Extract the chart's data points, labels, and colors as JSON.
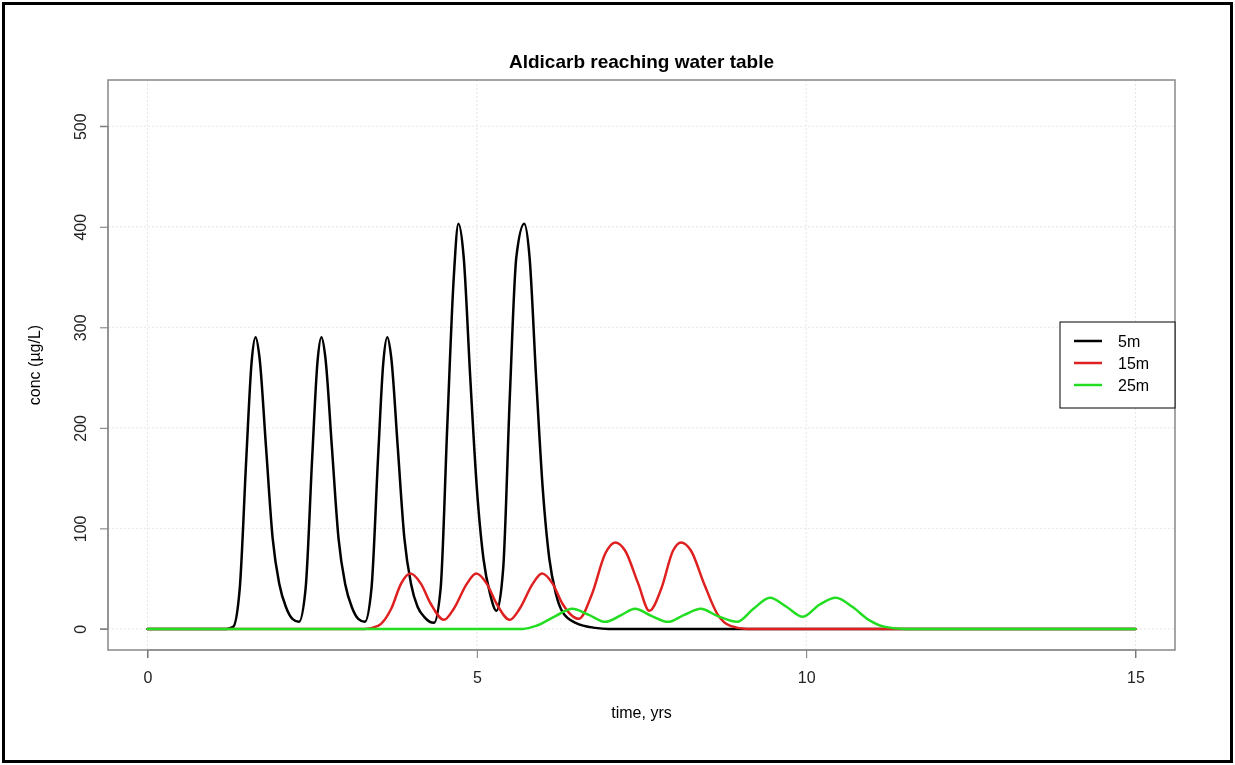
{
  "chart_data": {
    "type": "line",
    "title": "Aldicarb reaching water table",
    "xlabel": "time, yrs",
    "ylabel": "conc (µg/L)",
    "xlim": [
      -0.6,
      15.6
    ],
    "ylim": [
      -21,
      546
    ],
    "xticks": [
      0,
      5,
      10,
      15
    ],
    "yticks": [
      0,
      100,
      200,
      300,
      400,
      500
    ],
    "grid": true,
    "legend": "right",
    "line_style": "solid",
    "marker": "none",
    "series": [
      {
        "name": "5m",
        "color": "#000000",
        "x": [
          0,
          1.2,
          1.3,
          1.4,
          1.5,
          1.58,
          1.64,
          1.7,
          1.8,
          1.9,
          2.0,
          2.1,
          2.2,
          2.3,
          2.4,
          2.5,
          2.58,
          2.64,
          2.7,
          2.8,
          2.9,
          3.0,
          3.1,
          3.2,
          3.3,
          3.4,
          3.5,
          3.58,
          3.64,
          3.7,
          3.8,
          3.9,
          4.0,
          4.1,
          4.2,
          4.35,
          4.45,
          4.55,
          4.65,
          4.72,
          4.8,
          4.9,
          5.0,
          5.1,
          5.2,
          5.3,
          5.4,
          5.5,
          5.6,
          5.72,
          5.8,
          5.9,
          6.0,
          6.1,
          6.2,
          6.3,
          6.5,
          6.8,
          7.0,
          15
        ],
        "values": [
          0,
          0,
          2,
          40,
          170,
          265,
          290,
          270,
          180,
          90,
          45,
          22,
          10,
          7,
          40,
          170,
          265,
          290,
          270,
          180,
          90,
          45,
          22,
          10,
          7,
          40,
          170,
          265,
          290,
          270,
          180,
          90,
          45,
          22,
          12,
          6,
          40,
          200,
          350,
          403,
          370,
          250,
          140,
          70,
          35,
          18,
          60,
          230,
          370,
          403,
          370,
          250,
          140,
          70,
          35,
          17,
          6,
          1,
          0,
          0
        ]
      },
      {
        "name": "15m",
        "color": "#df2020",
        "x": [
          0,
          3.3,
          3.5,
          3.7,
          3.85,
          3.99,
          4.15,
          4.3,
          4.5,
          4.65,
          4.85,
          4.99,
          5.15,
          5.3,
          5.5,
          5.65,
          5.85,
          5.99,
          6.15,
          6.3,
          6.55,
          6.75,
          6.95,
          7.1,
          7.25,
          7.45,
          7.62,
          7.8,
          7.98,
          8.1,
          8.25,
          8.45,
          8.65,
          8.85,
          9.1,
          15
        ],
        "values": [
          0,
          0,
          3,
          20,
          45,
          55,
          45,
          25,
          9,
          20,
          45,
          55,
          45,
          25,
          9,
          20,
          45,
          55,
          45,
          25,
          10,
          35,
          75,
          86,
          78,
          45,
          18,
          40,
          78,
          86,
          78,
          45,
          15,
          3,
          0,
          0
        ]
      },
      {
        "name": "25m",
        "color": "#22dd22",
        "x": [
          0,
          5.7,
          5.9,
          6.2,
          6.45,
          6.7,
          6.95,
          7.2,
          7.4,
          7.65,
          7.9,
          8.15,
          8.4,
          8.65,
          8.95,
          9.2,
          9.45,
          9.7,
          9.95,
          10.2,
          10.45,
          10.7,
          10.95,
          11.2,
          11.5,
          15
        ],
        "values": [
          0,
          0,
          3,
          13,
          20,
          14,
          7,
          14,
          20,
          13,
          7,
          14,
          20,
          13,
          7,
          20,
          31,
          22,
          12,
          24,
          31,
          22,
          9,
          2,
          0,
          0
        ]
      }
    ]
  }
}
